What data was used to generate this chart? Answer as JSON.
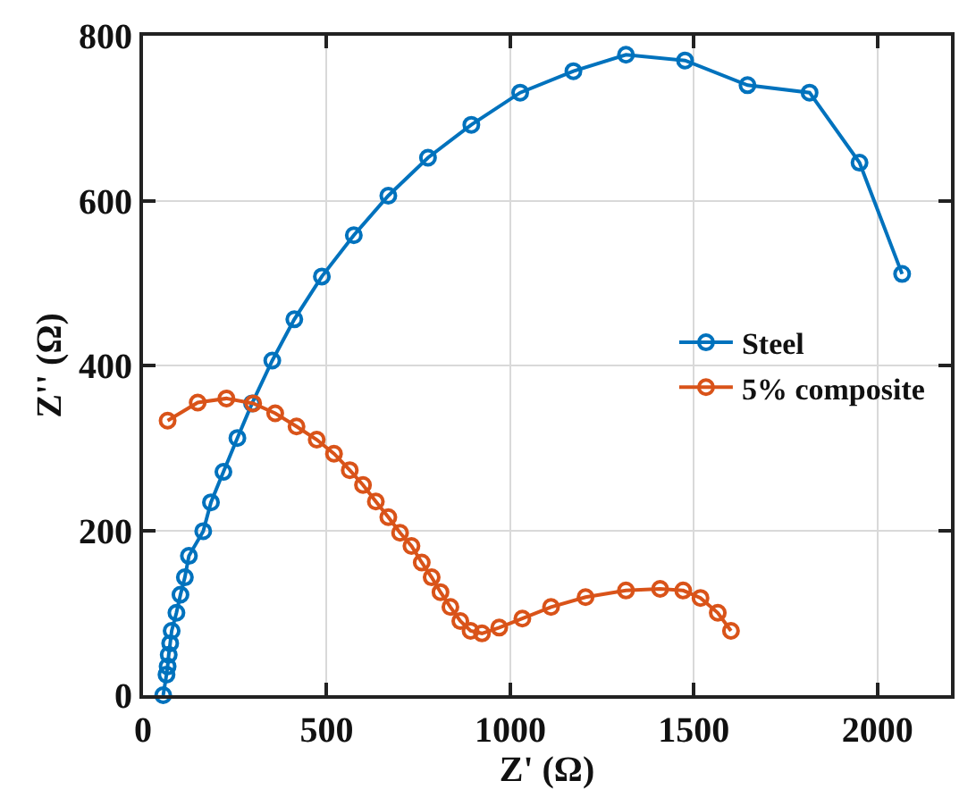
{
  "chart_data": {
    "type": "line",
    "xlabel": "Z' (Ω)",
    "ylabel": "Z'' (Ω)",
    "xlim": [
      0,
      2200
    ],
    "ylim": [
      0,
      800
    ],
    "xticks": [
      0,
      500,
      1000,
      1500,
      2000
    ],
    "yticks": [
      0,
      200,
      400,
      600,
      800
    ],
    "grid": true,
    "legend": "right",
    "marker": "circle",
    "line_style": "solid",
    "series": [
      {
        "name": "Steel",
        "color": "#0072bd",
        "x": [
          55,
          64,
          67,
          70,
          74,
          78,
          91,
          102,
          114,
          125,
          164,
          185,
          219,
          257,
          297,
          352,
          412,
          487,
          574,
          668,
          776,
          894,
          1027,
          1172,
          1315,
          1476,
          1646,
          1815,
          1951,
          2067
        ],
        "values": [
          0,
          25,
          35,
          49,
          63,
          78,
          100,
          122,
          143,
          169,
          199,
          234,
          271,
          312,
          354,
          406,
          456,
          508,
          558,
          606,
          652,
          692,
          731,
          757,
          777,
          770,
          740,
          731,
          646,
          511
        ]
      },
      {
        "name": "5% composite",
        "color": "#d95319",
        "x": [
          67,
          149,
          227,
          300,
          360,
          418,
          473,
          520,
          563,
          599,
          634,
          668,
          700,
          731,
          759,
          786,
          810,
          837,
          864,
          892,
          923,
          970,
          1033,
          1111,
          1205,
          1315,
          1408,
          1471,
          1518,
          1565,
          1601
        ],
        "values": [
          333,
          355,
          360,
          354,
          342,
          326,
          310,
          293,
          273,
          255,
          235,
          216,
          197,
          181,
          161,
          143,
          125,
          107,
          90,
          78,
          75,
          82,
          93,
          107,
          119,
          127,
          129,
          127,
          118,
          100,
          78
        ]
      }
    ]
  }
}
